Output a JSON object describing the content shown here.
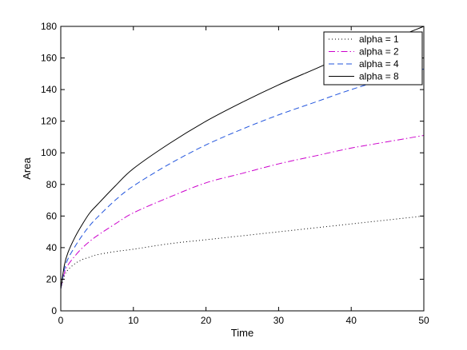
{
  "chart_data": {
    "type": "line",
    "title": "",
    "xlabel": "Time",
    "ylabel": "Area",
    "xlim": [
      0,
      50
    ],
    "ylim": [
      0,
      180
    ],
    "xticks": [
      0,
      10,
      20,
      30,
      40,
      50
    ],
    "yticks": [
      0,
      20,
      40,
      60,
      80,
      100,
      120,
      140,
      160,
      180
    ],
    "xtick_labels": [
      "0",
      "10",
      "20",
      "30",
      "40",
      "50"
    ],
    "ytick_labels": [
      "0",
      "20",
      "40",
      "60",
      "80",
      "100",
      "120",
      "140",
      "160",
      "180"
    ],
    "grid": false,
    "legend_position": "top-right",
    "series": [
      {
        "name": "alpha = 1",
        "color": "#000000",
        "style": "dotted",
        "x": [
          0,
          0.5,
          1,
          2,
          3,
          4,
          5,
          7.5,
          10,
          15,
          20,
          25,
          30,
          35,
          40,
          45,
          50
        ],
        "y": [
          14,
          22,
          26,
          30,
          32.5,
          34,
          35.5,
          37.5,
          39,
          42.5,
          45,
          47.5,
          50,
          52.5,
          55,
          57.5,
          60
        ]
      },
      {
        "name": "alpha = 2",
        "color": "#cc00cc",
        "style": "dashdot",
        "x": [
          0,
          0.5,
          1,
          2,
          3,
          4,
          5,
          7.5,
          10,
          15,
          20,
          25,
          30,
          35,
          40,
          45,
          50
        ],
        "y": [
          14,
          24,
          29,
          35,
          40,
          44,
          47.5,
          55,
          62,
          72,
          81,
          87,
          93,
          98,
          103,
          107,
          111
        ]
      },
      {
        "name": "alpha = 4",
        "color": "#2255dd",
        "style": "dashed",
        "x": [
          0,
          0.5,
          1,
          2,
          3,
          4,
          5,
          7.5,
          10,
          15,
          20,
          25,
          30,
          35,
          40,
          45,
          50
        ],
        "y": [
          14,
          26,
          33,
          41,
          48,
          54,
          59,
          70,
          79,
          93,
          105,
          115,
          124,
          132,
          140,
          147,
          153
        ]
      },
      {
        "name": "alpha = 8",
        "color": "#000000",
        "style": "solid",
        "x": [
          0,
          0.5,
          1,
          2,
          3,
          4,
          5,
          7.5,
          10,
          15,
          20,
          25,
          30,
          35,
          40,
          45,
          50
        ],
        "y": [
          14,
          29,
          37,
          47,
          55,
          62,
          67,
          79,
          90,
          106,
          120,
          132,
          143,
          153,
          163,
          171,
          180
        ]
      }
    ]
  }
}
